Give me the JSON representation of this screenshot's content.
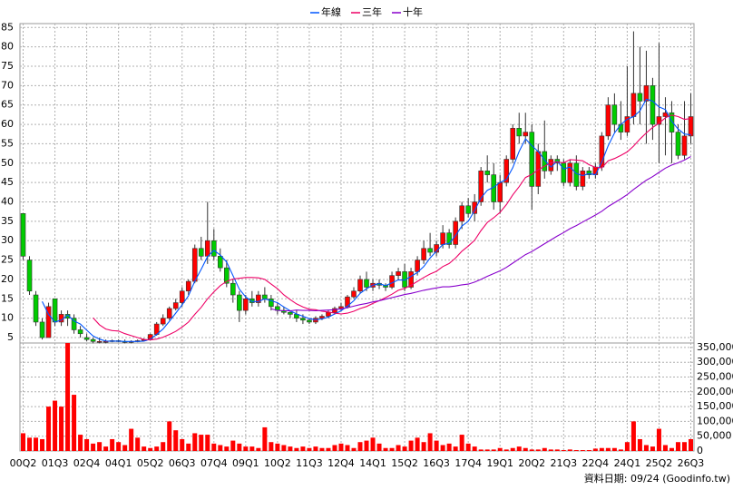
{
  "chart_data": [
    {
      "type": "candlestick",
      "open": [
        37,
        25,
        16,
        9,
        5,
        15,
        9,
        11,
        10,
        7,
        5,
        4.5,
        4,
        4,
        4,
        4.2,
        4,
        3.8,
        4,
        4.2,
        4.5,
        5.8,
        8.5,
        10,
        12.5,
        14,
        17,
        19.5,
        28,
        26,
        30,
        26,
        23,
        19,
        16,
        12,
        15,
        14,
        16,
        15,
        13,
        12,
        11.5,
        11,
        10,
        9.5,
        9,
        10,
        10.5,
        11.5,
        12.5,
        13,
        15.5,
        17,
        20,
        18,
        19,
        18.5,
        18,
        21,
        22,
        18,
        22,
        25,
        28,
        27,
        29,
        32,
        29,
        35,
        39,
        37,
        40,
        48,
        47,
        40,
        45,
        51,
        59,
        57,
        58,
        44,
        53,
        48,
        51,
        50,
        45,
        50,
        44,
        48,
        47,
        49,
        57,
        65,
        60,
        58,
        62,
        68,
        66,
        70,
        60,
        62,
        63,
        58,
        52,
        57
      ],
      "high": [
        37,
        26,
        17,
        10,
        14,
        15,
        12,
        12,
        11,
        8,
        6,
        5,
        5,
        4.5,
        4.5,
        4.5,
        4.5,
        4.3,
        4.5,
        4.8,
        6,
        9,
        11,
        13,
        15,
        18,
        20,
        29,
        31,
        40,
        33,
        28,
        25,
        20,
        17,
        16,
        17,
        17,
        18,
        16,
        14,
        13,
        12,
        12,
        11,
        10,
        10.5,
        11,
        12,
        13,
        14,
        16,
        18,
        21,
        22,
        20,
        20,
        19,
        22,
        23,
        24,
        23,
        26,
        30,
        32,
        30,
        34,
        33,
        36,
        40,
        41,
        42,
        49,
        52,
        50,
        47,
        52,
        60,
        63,
        63,
        60,
        55,
        61,
        52,
        52,
        51,
        51,
        52,
        49,
        49,
        50,
        58,
        67,
        68,
        66,
        75,
        84,
        80,
        79,
        72,
        81,
        67,
        66,
        60,
        66,
        68
      ],
      "low": [
        25,
        16,
        8,
        4.5,
        5,
        8,
        8,
        8,
        6,
        5,
        4,
        3.5,
        3.5,
        3.5,
        3.8,
        3.8,
        3.5,
        3.5,
        3.8,
        4,
        4.3,
        5.5,
        8,
        9.5,
        12,
        13,
        16,
        19,
        25,
        24,
        25,
        22,
        18,
        14,
        9,
        11,
        13,
        13,
        14,
        12,
        11,
        11,
        10,
        9,
        8.5,
        8.5,
        8.5,
        9.5,
        10,
        11,
        12,
        12.5,
        15,
        16.5,
        17,
        17,
        17.5,
        17,
        17.5,
        20,
        17,
        17.5,
        21,
        24,
        26,
        26,
        28,
        28,
        28,
        33,
        36,
        35,
        39,
        45,
        38,
        37,
        44,
        50,
        55,
        55,
        38,
        42,
        46,
        47,
        48,
        44,
        44,
        43,
        43,
        46,
        46,
        48,
        56,
        58,
        56,
        57,
        60,
        60,
        55,
        56,
        50,
        52,
        50,
        51,
        51,
        55
      ],
      "close": [
        26,
        17,
        9,
        5,
        13,
        9,
        11,
        10,
        7,
        6,
        4.5,
        4,
        4,
        4,
        4.2,
        4,
        3.8,
        4,
        4.2,
        4.5,
        5.8,
        8.5,
        10,
        12.5,
        14,
        17,
        19.5,
        28,
        26,
        30,
        26,
        23,
        19,
        16,
        12,
        15,
        14,
        16,
        15,
        13,
        12,
        11.5,
        11,
        10,
        9.5,
        9,
        10,
        10.5,
        11.5,
        12.5,
        13,
        15.5,
        17,
        20,
        18,
        19,
        18.5,
        18,
        21,
        22,
        18,
        22,
        25,
        28,
        27,
        29,
        32,
        29,
        35,
        39,
        37,
        40,
        48,
        47,
        40,
        45,
        51,
        59,
        57,
        58,
        44,
        53,
        48,
        51,
        50,
        45,
        50,
        44,
        48,
        47,
        49,
        57,
        65,
        60,
        58,
        62,
        68,
        66,
        70,
        60,
        62,
        63,
        58,
        52,
        57,
        62
      ],
      "up_color": "#ff0000",
      "down_color": "#00cc00",
      "series": [
        {
          "name": "年線",
          "color": "#0055ff",
          "values": [
            null,
            null,
            null,
            14.3,
            11,
            9,
            9.5,
            10.8,
            9.3,
            8.5,
            6.9,
            5.4,
            4.6,
            4.1,
            4.1,
            4.1,
            4,
            4,
            4,
            4.1,
            4.6,
            5.8,
            7.2,
            9.2,
            11.3,
            13.4,
            15.8,
            19.6,
            22.6,
            25.9,
            27.5,
            26.3,
            24.5,
            21,
            17.5,
            15.5,
            14.3,
            14.3,
            15,
            14.5,
            14,
            12.9,
            11.9,
            11.1,
            10.5,
            9.9,
            9.6,
            9.8,
            10.3,
            11.1,
            11.9,
            13.1,
            14.5,
            16.4,
            17.6,
            18.5,
            18.9,
            18.4,
            19.1,
            19.9,
            19.8,
            20.8,
            21.8,
            23.3,
            25.5,
            27.3,
            29,
            29.3,
            31.3,
            33.8,
            35,
            37.8,
            41,
            43,
            43.8,
            45,
            45.8,
            48.8,
            53,
            56.3,
            54.5,
            53,
            50.8,
            49,
            50.5,
            48.5,
            49,
            47.3,
            46.8,
            47.3,
            47,
            50.3,
            54.5,
            57.8,
            60,
            61.3,
            62,
            63.5,
            66.5,
            66,
            64.5,
            63.8,
            60.8,
            58.8,
            57.5,
            57.3
          ]
        },
        {
          "name": "三年",
          "color": "#ee0066",
          "values": [
            null,
            null,
            null,
            null,
            null,
            null,
            null,
            null,
            null,
            null,
            null,
            10.1,
            8.3,
            7.2,
            6.8,
            6.7,
            6,
            5.5,
            5,
            4.5,
            4.4,
            4.6,
            5.1,
            5.8,
            6.6,
            7.7,
            9,
            11,
            12.8,
            15,
            16.8,
            18.4,
            19.5,
            20.1,
            20.3,
            20.5,
            20.5,
            20.4,
            20,
            18.8,
            17.6,
            16,
            14.8,
            13.7,
            12.9,
            12.3,
            12.2,
            11.8,
            11.6,
            11.3,
            11.1,
            11.3,
            11.8,
            12.5,
            13,
            13.8,
            14.5,
            15.3,
            16.2,
            17.2,
            17.7,
            18.5,
            19.5,
            20.5,
            21.4,
            22.1,
            23.3,
            24.1,
            25.5,
            27.3,
            28.6,
            30.1,
            32.6,
            34.7,
            35.9,
            37.3,
            39.3,
            41.8,
            43.9,
            46.3,
            47.1,
            48.3,
            49.2,
            50.1,
            50.3,
            50.1,
            50.9,
            50.8,
            50.6,
            49.6,
            48.9,
            48.8,
            50.6,
            51.2,
            52,
            52.9,
            54.4,
            56.2,
            57.8,
            59.2,
            60.3,
            61.7,
            62.4,
            62,
            61.3,
            61.5
          ]
        },
        {
          "name": "十年",
          "color": "#8800cc",
          "values": [
            null,
            null,
            null,
            null,
            null,
            null,
            null,
            null,
            null,
            null,
            null,
            null,
            null,
            null,
            null,
            null,
            null,
            null,
            null,
            null,
            null,
            null,
            null,
            null,
            null,
            null,
            null,
            null,
            null,
            null,
            null,
            null,
            null,
            null,
            null,
            null,
            null,
            null,
            null,
            12.4,
            12,
            11.9,
            11.9,
            12.1,
            12,
            12,
            11.9,
            12,
            12.1,
            12.2,
            12.4,
            12.7,
            13.1,
            13.5,
            13.8,
            14.2,
            14.5,
            14.9,
            15.3,
            15.7,
            16.1,
            16.4,
            16.8,
            17.2,
            17.5,
            17.8,
            18.1,
            18.1,
            18.3,
            18.6,
            18.8,
            19.3,
            20,
            20.8,
            21.5,
            22.2,
            23.1,
            24.2,
            25.3,
            26.4,
            27.2,
            28.2,
            29.2,
            30.2,
            31.2,
            32.1,
            33.1,
            33.9,
            34.8,
            35.7,
            36.6,
            37.6,
            38.8,
            39.8,
            40.8,
            41.9,
            43.2,
            44.4,
            45.6,
            46.5,
            47.6,
            48.7,
            49.5,
            50.1,
            50.8,
            51.7
          ]
        }
      ],
      "ylim": [
        3.6,
        86
      ],
      "yticks": [
        5,
        10,
        15,
        20,
        25,
        30,
        35,
        40,
        45,
        50,
        55,
        60,
        65,
        70,
        75,
        80,
        85
      ],
      "grid": true
    },
    {
      "type": "bar",
      "color": "#ff0000",
      "categories": [
        "00Q2",
        null,
        null,
        null,
        null,
        "01Q3",
        null,
        null,
        null,
        null,
        "02Q4",
        null,
        null,
        null,
        null,
        "04Q1",
        null,
        null,
        null,
        null,
        "05Q2",
        null,
        null,
        null,
        null,
        "06Q3",
        null,
        null,
        null,
        null,
        "07Q4",
        null,
        null,
        null,
        null,
        "09Q1",
        null,
        null,
        null,
        null,
        "10Q2",
        null,
        null,
        null,
        null,
        "11Q3",
        null,
        null,
        null,
        null,
        "12Q4",
        null,
        null,
        null,
        null,
        "14Q1",
        null,
        null,
        null,
        null,
        "15Q2",
        null,
        null,
        null,
        null,
        "16Q3",
        null,
        null,
        null,
        null,
        "17Q4",
        null,
        null,
        null,
        null,
        "19Q1",
        null,
        null,
        null,
        null,
        "20Q2",
        null,
        null,
        null,
        null,
        "21Q3",
        null,
        null,
        null,
        null,
        "22Q4",
        null,
        null,
        null,
        null,
        "24Q1",
        null,
        null,
        null,
        null,
        "25Q2",
        null,
        null,
        null,
        null,
        "26Q3"
      ],
      "values": [
        60000,
        45000,
        45000,
        40000,
        150000,
        170000,
        150000,
        365000,
        190000,
        55000,
        40000,
        25000,
        30000,
        15000,
        40000,
        30000,
        20000,
        75000,
        45000,
        15000,
        10000,
        15000,
        30000,
        100000,
        70000,
        40000,
        25000,
        60000,
        55000,
        55000,
        25000,
        20000,
        15000,
        35000,
        25000,
        15000,
        15000,
        10000,
        80000,
        30000,
        25000,
        20000,
        15000,
        10000,
        15000,
        10000,
        15000,
        10000,
        10000,
        20000,
        25000,
        20000,
        10000,
        30000,
        35000,
        45000,
        25000,
        10000,
        10000,
        20000,
        15000,
        35000,
        45000,
        30000,
        60000,
        35000,
        20000,
        25000,
        15000,
        55000,
        25000,
        15000,
        5000,
        5000,
        5000,
        10000,
        5000,
        10000,
        15000,
        10000,
        5000,
        5000,
        10000,
        5000,
        5000,
        3000,
        5000,
        3000,
        3000,
        3000,
        8000,
        10000,
        10000,
        10000,
        5000,
        30000,
        100000,
        40000,
        20000,
        15000,
        75000,
        20000,
        10000,
        30000,
        30000,
        40000
      ],
      "ylim": [
        0,
        365000
      ],
      "yticks": [
        0,
        {
          "value": 50000,
          "label": "50,000"
        },
        {
          "value": 100000,
          "label": "100,000"
        },
        {
          "value": 150000,
          "label": "150,000"
        },
        {
          "value": 200000,
          "label": "200,000"
        },
        {
          "value": 250000,
          "label": "250,000"
        },
        {
          "value": 300000,
          "label": "300,000"
        },
        {
          "value": 350000,
          "label": "350,000"
        }
      ],
      "grid": true,
      "source": "資料日期: 09/24 (Goodinfo.tw)"
    }
  ]
}
